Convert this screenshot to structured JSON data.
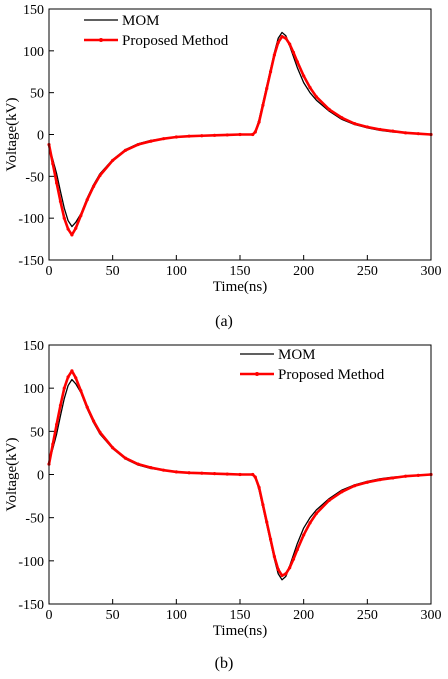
{
  "chart_data": [
    {
      "type": "line",
      "caption": "(a)",
      "xlabel": "Time(ns)",
      "ylabel": "Voltage(kV)",
      "xlim": [
        0,
        300
      ],
      "ylim": [
        -150,
        150
      ],
      "xticks": [
        0,
        50,
        100,
        150,
        200,
        250,
        300
      ],
      "yticks": [
        150,
        100,
        50,
        0,
        -50,
        -100,
        -150
      ],
      "grid": false,
      "legend_position": "top-left",
      "series": [
        {
          "name": "MOM",
          "color": "#000000",
          "x": [
            0,
            3,
            6,
            9,
            12,
            15,
            18,
            21,
            25,
            30,
            35,
            40,
            50,
            60,
            70,
            80,
            90,
            100,
            110,
            120,
            130,
            140,
            150,
            160,
            162,
            165,
            168,
            171,
            174,
            177,
            180,
            183,
            186,
            189,
            192,
            195,
            200,
            205,
            210,
            220,
            230,
            240,
            250,
            260,
            270,
            280,
            290,
            300
          ],
          "y": [
            -15,
            -30,
            -47,
            -68,
            -88,
            -103,
            -110,
            -105,
            -95,
            -76,
            -60,
            -47,
            -30,
            -18,
            -11,
            -7,
            -5,
            -3,
            -2,
            -1.5,
            -1,
            -0.5,
            0,
            0,
            3,
            18,
            38,
            58,
            78,
            98,
            115,
            122,
            118,
            106,
            93,
            80,
            62,
            50,
            41,
            28,
            18,
            12,
            8,
            5,
            3,
            2,
            1,
            0
          ]
        },
        {
          "name": "Proposed Method",
          "color": "#ff0000",
          "x": [
            0,
            3,
            6,
            9,
            12,
            15,
            18,
            21,
            25,
            30,
            35,
            40,
            50,
            60,
            70,
            80,
            90,
            100,
            110,
            120,
            130,
            140,
            150,
            160,
            162,
            165,
            168,
            171,
            174,
            177,
            180,
            183,
            186,
            189,
            192,
            195,
            200,
            205,
            210,
            220,
            230,
            240,
            250,
            260,
            270,
            280,
            290,
            300
          ],
          "y": [
            -12,
            -35,
            -58,
            -80,
            -100,
            -113,
            -120,
            -112,
            -97,
            -78,
            -62,
            -49,
            -31,
            -19,
            -12,
            -8,
            -5,
            -3,
            -2,
            -1.5,
            -1,
            -0.5,
            0,
            0,
            3,
            15,
            35,
            55,
            75,
            95,
            110,
            117,
            115,
            108,
            98,
            87,
            70,
            56,
            45,
            30,
            20,
            13,
            9,
            6,
            4,
            2,
            1,
            0
          ]
        }
      ]
    },
    {
      "type": "line",
      "caption": "(b)",
      "xlabel": "Time(ns)",
      "ylabel": "Voltage(kV)",
      "xlim": [
        0,
        300
      ],
      "ylim": [
        -150,
        150
      ],
      "xticks": [
        0,
        50,
        100,
        150,
        200,
        250,
        300
      ],
      "yticks": [
        150,
        100,
        50,
        0,
        -50,
        -100,
        -150
      ],
      "grid": false,
      "legend_position": "top-right",
      "series": [
        {
          "name": "MOM",
          "color": "#000000",
          "x": [
            0,
            3,
            6,
            9,
            12,
            15,
            18,
            21,
            25,
            30,
            35,
            40,
            50,
            60,
            70,
            80,
            90,
            100,
            110,
            120,
            130,
            140,
            150,
            160,
            162,
            165,
            168,
            171,
            174,
            177,
            180,
            183,
            186,
            189,
            192,
            195,
            200,
            205,
            210,
            220,
            230,
            240,
            250,
            260,
            270,
            280,
            290,
            300
          ],
          "y": [
            15,
            30,
            47,
            68,
            88,
            103,
            110,
            105,
            95,
            76,
            60,
            47,
            30,
            18,
            11,
            7,
            5,
            3,
            2,
            1.5,
            1,
            0.5,
            0,
            0,
            -3,
            -18,
            -38,
            -58,
            -78,
            -98,
            -115,
            -122,
            -118,
            -106,
            -93,
            -80,
            -62,
            -50,
            -41,
            -28,
            -18,
            -12,
            -8,
            -5,
            -3,
            -2,
            -1,
            0
          ]
        },
        {
          "name": "Proposed Method",
          "color": "#ff0000",
          "x": [
            0,
            3,
            6,
            9,
            12,
            15,
            18,
            21,
            25,
            30,
            35,
            40,
            50,
            60,
            70,
            80,
            90,
            100,
            110,
            120,
            130,
            140,
            150,
            160,
            162,
            165,
            168,
            171,
            174,
            177,
            180,
            183,
            186,
            189,
            192,
            195,
            200,
            205,
            210,
            220,
            230,
            240,
            250,
            260,
            270,
            280,
            290,
            300
          ],
          "y": [
            12,
            35,
            58,
            80,
            100,
            113,
            120,
            112,
            97,
            78,
            62,
            49,
            31,
            19,
            12,
            8,
            5,
            3,
            2,
            1.5,
            1,
            0.5,
            0,
            0,
            -3,
            -15,
            -35,
            -55,
            -75,
            -95,
            -110,
            -117,
            -115,
            -108,
            -98,
            -87,
            -70,
            -56,
            -45,
            -30,
            -20,
            -13,
            -9,
            -6,
            -4,
            -2,
            -1,
            0
          ]
        }
      ]
    }
  ]
}
